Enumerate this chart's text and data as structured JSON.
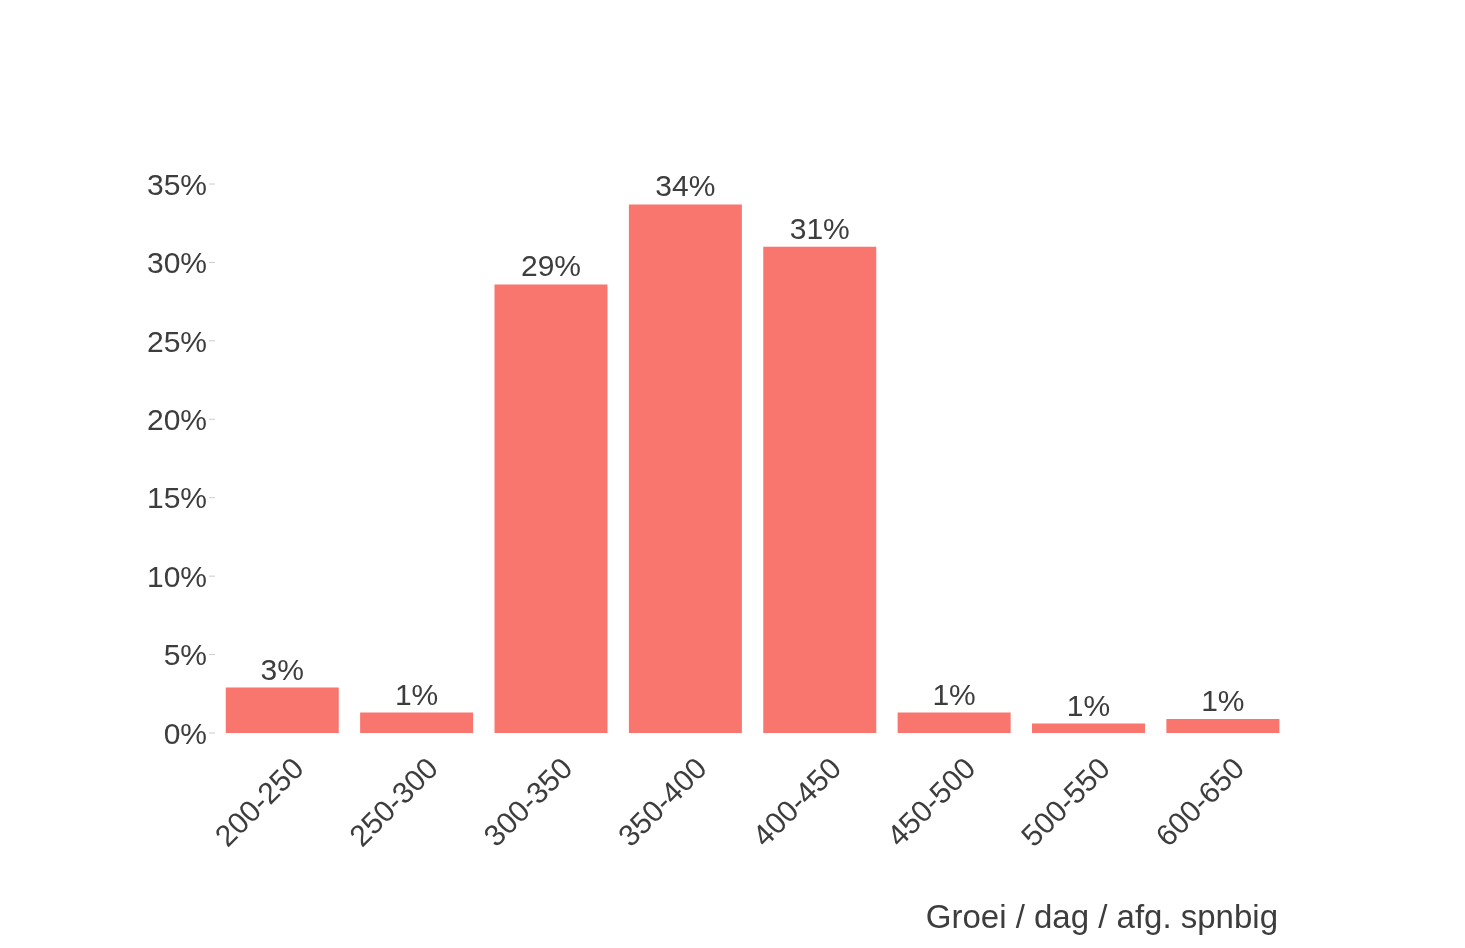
{
  "chart_data": {
    "type": "bar",
    "xlabel": "Groei / dag / afg. spnbig",
    "categories": [
      "200-250",
      "250-300",
      "300-350",
      "350-400",
      "400-450",
      "450-500",
      "500-550",
      "600-650"
    ],
    "values": [
      2.9,
      1.3,
      28.6,
      33.7,
      31.0,
      1.3,
      0.6,
      0.9
    ],
    "value_labels": [
      "3%",
      "1%",
      "29%",
      "34%",
      "31%",
      "1%",
      "1%",
      "1%"
    ],
    "color": "#f8766d",
    "ylim": [
      0,
      35
    ],
    "yticks": [
      {
        "value": 0,
        "label": "0%"
      },
      {
        "value": 5,
        "label": "5%"
      },
      {
        "value": 10,
        "label": "10%"
      },
      {
        "value": 15,
        "label": "15%"
      },
      {
        "value": 20,
        "label": "20%"
      },
      {
        "value": 25,
        "label": "25%"
      },
      {
        "value": 30,
        "label": "30%"
      },
      {
        "value": 35,
        "label": "35%"
      }
    ]
  }
}
